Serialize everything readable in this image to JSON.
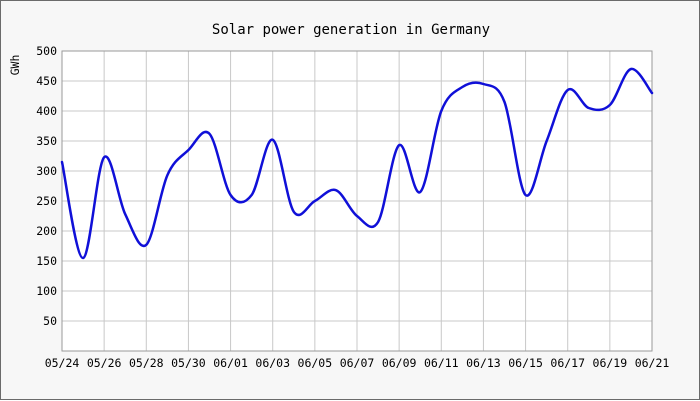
{
  "chart_data": {
    "type": "line",
    "title": "Solar power generation in Germany",
    "ylabel": "GWh",
    "xlabel": "",
    "ylim": [
      0,
      500
    ],
    "yticks": [
      50,
      100,
      150,
      200,
      250,
      300,
      350,
      400,
      450,
      500
    ],
    "xticks": [
      "05/24",
      "05/26",
      "05/28",
      "05/30",
      "06/01",
      "06/03",
      "06/05",
      "06/07",
      "06/09",
      "06/11",
      "06/13",
      "06/15",
      "06/17",
      "06/19",
      "06/21"
    ],
    "grid": true,
    "colors": {
      "line": "#1010d8",
      "grid": "#c8c8c8",
      "plot_bg": "#ffffff",
      "frame_bg": "#f7f7f7"
    },
    "series": [
      {
        "dates": [
          "05/24",
          "05/25",
          "05/26",
          "05/27",
          "05/28",
          "05/29",
          "05/30",
          "05/31",
          "06/01",
          "06/02",
          "06/03",
          "06/04",
          "06/05",
          "06/06",
          "06/07",
          "06/08",
          "06/09",
          "06/10",
          "06/11",
          "06/12",
          "06/13",
          "06/14",
          "06/15",
          "06/16",
          "06/17",
          "06/18",
          "06/19",
          "06/20",
          "06/21"
        ],
        "values": [
          315,
          155,
          323,
          228,
          177,
          293,
          335,
          362,
          260,
          260,
          352,
          232,
          250,
          268,
          225,
          215,
          343,
          265,
          400,
          440,
          445,
          415,
          260,
          350,
          435,
          405,
          410,
          470,
          430
        ]
      }
    ]
  }
}
